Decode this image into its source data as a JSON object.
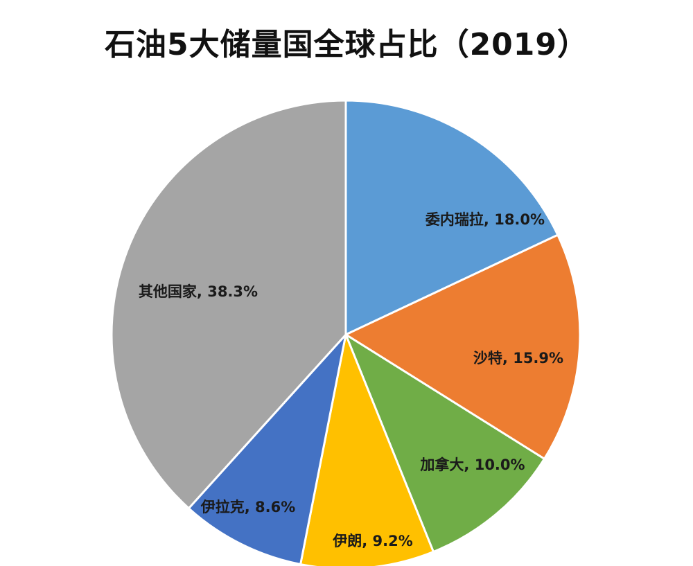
{
  "chart_data": {
    "type": "pie",
    "title": "石油5大储量国全球占比（2019）",
    "slices": [
      {
        "label": "委内瑞拉, 18.0%",
        "value": 18.0,
        "color": "#5b9bd5"
      },
      {
        "label": "沙特, 15.9%",
        "value": 15.9,
        "color": "#ed7d31"
      },
      {
        "label": "加拿大, 10.0%",
        "value": 10.0,
        "color": "#70ad47"
      },
      {
        "label": "伊朗, 9.2%",
        "value": 9.2,
        "color": "#ffc000"
      },
      {
        "label": "伊拉克, 8.6%",
        "value": 8.6,
        "color": "#4472c4"
      },
      {
        "label": "其他国家, 38.3%",
        "value": 38.3,
        "color": "#a5a5a5"
      }
    ],
    "start_angle_deg": 0,
    "direction": "clockwise",
    "legend": "none"
  }
}
